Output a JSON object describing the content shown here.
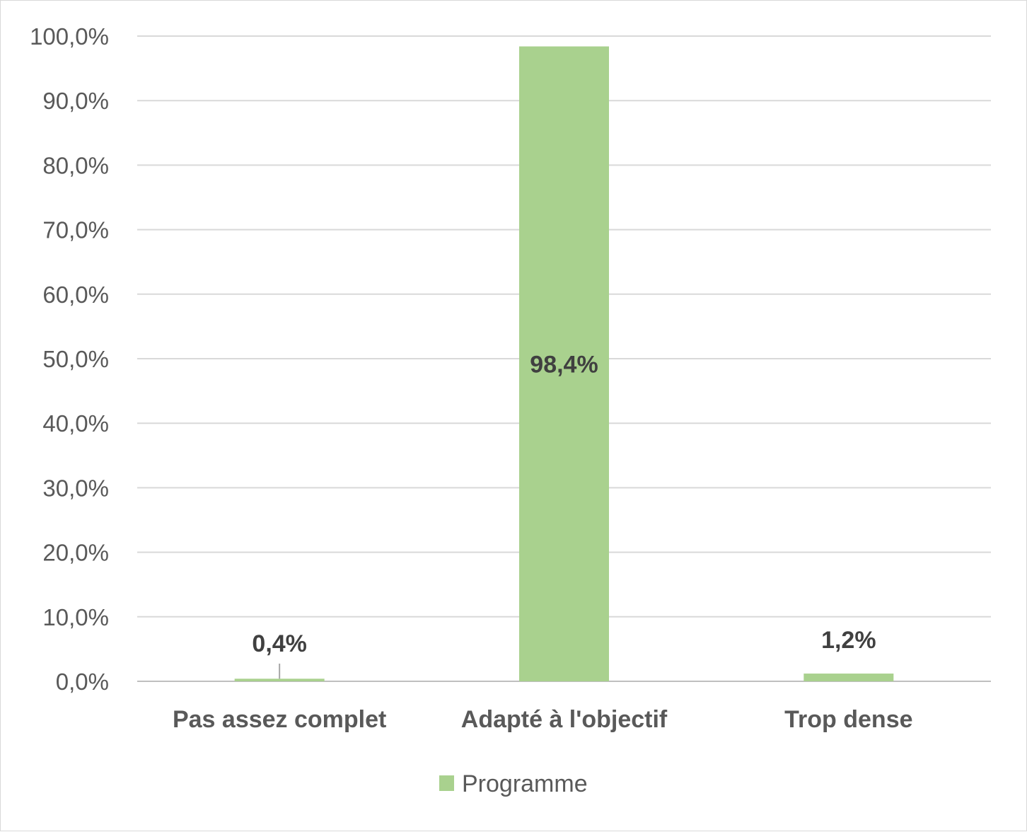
{
  "chart_data": {
    "type": "bar",
    "categories": [
      "Pas assez complet",
      "Adapté à l'objectif",
      "Trop dense"
    ],
    "series": [
      {
        "name": "Programme",
        "values": [
          0.4,
          98.4,
          1.2
        ],
        "color": "#a9d18e"
      }
    ],
    "data_labels": [
      "0,4%",
      "98,4%",
      "1,2%"
    ],
    "y_ticks": [
      "0,0%",
      "10,0%",
      "20,0%",
      "30,0%",
      "40,0%",
      "50,0%",
      "60,0%",
      "70,0%",
      "80,0%",
      "90,0%",
      "100,0%"
    ],
    "ylim": [
      0,
      100
    ],
    "grid": true,
    "legend_position": "bottom",
    "title": "",
    "xlabel": "",
    "ylabel": ""
  }
}
